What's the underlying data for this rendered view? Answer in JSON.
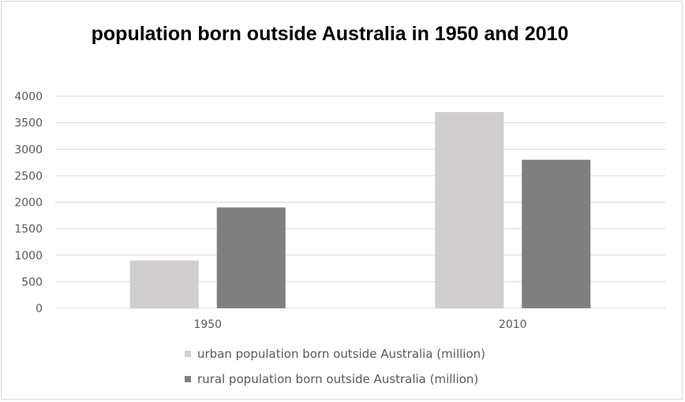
{
  "chart_data": {
    "type": "bar",
    "title": "population born outside Australia in 1950 and 2010",
    "categories": [
      "1950",
      "2010"
    ],
    "series": [
      {
        "name": "urban population born outside Australia (million)",
        "values": [
          900,
          3700
        ],
        "color": "#d0cece"
      },
      {
        "name": "rural population born outside Australia (million)",
        "values": [
          1900,
          2800
        ],
        "color": "#7f7f7f"
      }
    ],
    "xlabel": "",
    "ylabel": "",
    "ylim": [
      0,
      4000
    ],
    "yticks": [
      "0",
      "500",
      "1000",
      "1500",
      "2000",
      "2500",
      "3000",
      "3500",
      "4000"
    ],
    "grid": true,
    "legend_position": "bottom"
  }
}
